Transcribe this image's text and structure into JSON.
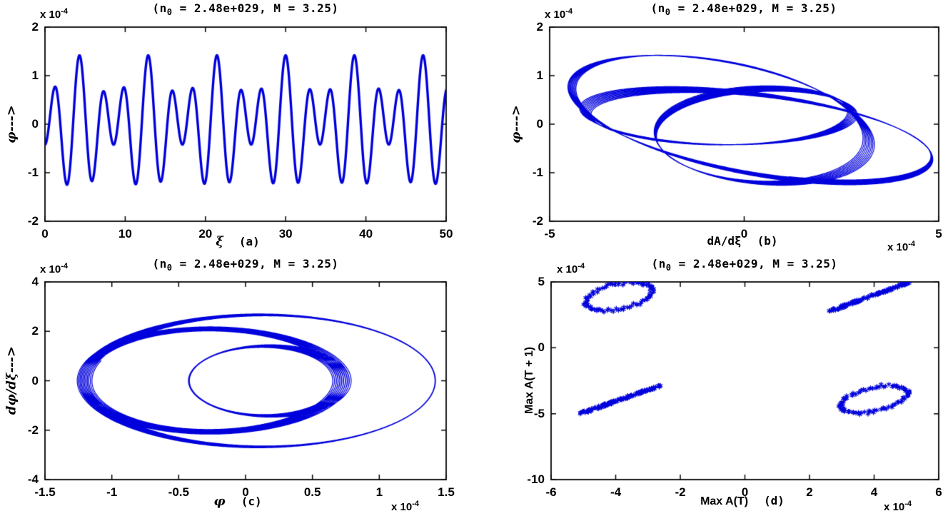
{
  "figure": {
    "background": "#ffffff",
    "line_color": "#0000DC",
    "marker_color": "#0000DC",
    "axis_color": "#000000"
  },
  "chart_data": [
    {
      "id": "a",
      "type": "line",
      "title": "(n0 = 2.48e+029, M = 3.25)",
      "title_parts": {
        "pre": "(n",
        "sub": "0",
        "post": " = 2.48e+029,  M = 3.25)"
      },
      "xlabel": "ξ",
      "panel_tag": "(a)",
      "ylabel": "φ--->",
      "xlim": [
        0,
        50
      ],
      "ylim": [
        -2,
        2
      ],
      "xticks": [
        0,
        10,
        20,
        30,
        40,
        50
      ],
      "xtick_labels": [
        "0",
        "10",
        "20",
        "30",
        "40",
        "50"
      ],
      "yticks": [
        2,
        1,
        0,
        -1,
        -2
      ],
      "ytick_labels": [
        "2",
        "1",
        "0",
        "-1",
        "-2"
      ],
      "y_scale": {
        "base": "x 10",
        "exp": "-4"
      },
      "line_width": 3.4,
      "series_model": {
        "note": "quasi-periodic potential oscillation, values in units of 1e-4; peak amplitude ~1.45, ~17 carrier peaks over 0..50, beat envelope period ~8.6",
        "x": "t",
        "t": [
          0,
          50,
          4200
        ],
        "y": {
          "terms": [
            {
              "a": 0.92,
              "w": 2.2,
              "p": 4.7,
              "fn": "sin"
            },
            {
              "a": 0.5,
              "w": 1.47,
              "p": 1.45,
              "fn": "sin"
            }
          ]
        }
      }
    },
    {
      "id": "b",
      "type": "line",
      "title": "(n0 = 2.48e+029, M = 3.25)",
      "title_parts": {
        "pre": "(n",
        "sub": "0",
        "post": " = 2.48e+029,  M = 3.25)"
      },
      "xlabel": "dA/dξ",
      "panel_tag": "(b)",
      "ylabel": "φ--->",
      "xlim": [
        -5,
        5
      ],
      "ylim": [
        -2,
        2
      ],
      "xticks": [
        -5,
        0,
        5
      ],
      "xtick_labels": [
        "-5",
        "0",
        "5"
      ],
      "yticks": [
        2,
        1,
        0,
        -1,
        -2
      ],
      "ytick_labels": [
        "2",
        "1",
        "0",
        "-1",
        "-2"
      ],
      "y_scale": {
        "base": "x 10",
        "exp": "-4"
      },
      "x_scale": {
        "base": "x 10",
        "exp": "-4"
      },
      "line_width": 1.2,
      "series_model": {
        "note": "phase-space torus projection (phi vs dA/dxi), units 1e-4; outer extent ~±4.85 in x, ~±1.42 in y, nested precessing loops",
        "t": [
          0,
          80,
          16000
        ],
        "x": {
          "terms": [
            {
              "a": 3.55,
              "w": 2.2,
              "p": 1.3,
              "fn": "cos"
            },
            {
              "a": 1.3,
              "w": 1.47,
              "p": 3.0,
              "fn": "cos"
            }
          ]
        },
        "y": {
          "terms": [
            {
              "a": 0.92,
              "w": 2.2,
              "p": 4.7,
              "fn": "sin"
            },
            {
              "a": 0.5,
              "w": 1.47,
              "p": 1.45,
              "fn": "sin"
            }
          ]
        }
      }
    },
    {
      "id": "c",
      "type": "line",
      "title": "(n0 = 2.48e+029, M = 3.25)",
      "title_parts": {
        "pre": "(n",
        "sub": "0",
        "post": " = 2.48e+029,  M = 3.25)"
      },
      "xlabel": "φ",
      "panel_tag": "(c)",
      "ylabel": "dφ/dξ--->",
      "xlim": [
        -1.5,
        1.5
      ],
      "ylim": [
        -4,
        4
      ],
      "xticks": [
        -1.5,
        -1,
        -0.5,
        0,
        0.5,
        1,
        1.5
      ],
      "xtick_labels": [
        "-1.5",
        "-1",
        "-0.5",
        "0",
        "0.5",
        "1",
        "1.5"
      ],
      "yticks": [
        4,
        2,
        0,
        -2,
        -4
      ],
      "ytick_labels": [
        "4",
        "2",
        "0",
        "-2",
        "-4"
      ],
      "y_scale": {
        "base": "x 10",
        "exp": "-4"
      },
      "x_scale": {
        "base": "x 10",
        "exp": "-4"
      },
      "line_width": 1.2,
      "series_model": {
        "note": "phase portrait (dphi/dxi vs phi), units 1e-4; nested ellipses, x extent ~±1.42, y extent ~±2.76, inner loops near origin",
        "t": [
          0,
          80,
          16000
        ],
        "x": {
          "terms": [
            {
              "a": 0.92,
              "w": 2.2,
              "p": 4.7,
              "fn": "sin"
            },
            {
              "a": 0.5,
              "w": 1.47,
              "p": 1.45,
              "fn": "sin"
            }
          ]
        },
        "y": {
          "terms": [
            {
              "a": 2.024,
              "w": 2.2,
              "p": 4.7,
              "fn": "cos"
            },
            {
              "a": 0.735,
              "w": 1.47,
              "p": 1.45,
              "fn": "cos"
            }
          ]
        }
      }
    },
    {
      "id": "d",
      "type": "scatter",
      "marker": "*",
      "title": "(n0 = 2.48e+029, M = 3.25)",
      "title_parts": {
        "pre": "(n",
        "sub": "0",
        "post": " = 2.48e+029,  M = 3.25)"
      },
      "xlabel": "Max A(T)",
      "panel_tag": "(d)",
      "ylabel": "Max A(T + 1)",
      "xlim": [
        -6,
        6
      ],
      "ylim": [
        -10,
        5
      ],
      "xticks": [
        -6,
        -4,
        -2,
        0,
        2,
        4,
        6
      ],
      "xtick_labels": [
        "-6",
        "-4",
        "-2",
        "0",
        "2",
        "4",
        "6"
      ],
      "yticks": [
        5,
        0,
        -5,
        -10
      ],
      "ytick_labels": [
        "5",
        "0",
        "-5",
        "-10"
      ],
      "y_scale": {
        "base": "x 10",
        "exp": "-4"
      },
      "x_scale": {
        "base": "x 10",
        "exp": "-4"
      },
      "clusters": [
        {
          "kind": "ellipse",
          "cx": -3.9,
          "cy": 3.9,
          "rx": 1.05,
          "ry": 0.95,
          "tilt_deg": -12,
          "n": 90,
          "jitter": 0.07,
          "note": "ring of * markers, x span -5.0..-2.85, y span 3.0..4.9"
        },
        {
          "kind": "segment",
          "x1": 2.6,
          "y1": 2.75,
          "x2": 5.1,
          "y2": 5.0,
          "n": 130,
          "jitter": 0.1,
          "note": "dense diagonal band of * markers"
        },
        {
          "kind": "segment",
          "x1": -5.1,
          "y1": -5.0,
          "x2": -2.6,
          "y2": -2.85,
          "n": 130,
          "jitter": 0.1,
          "note": "dense diagonal band of * markers"
        },
        {
          "kind": "ellipse",
          "cx": 4.0,
          "cy": -3.9,
          "rx": 1.05,
          "ry": 0.9,
          "tilt_deg": -12,
          "n": 90,
          "jitter": 0.07,
          "note": "ring of * markers, x span 2.95..5.05, y span -4.9..-2.95"
        }
      ]
    }
  ]
}
